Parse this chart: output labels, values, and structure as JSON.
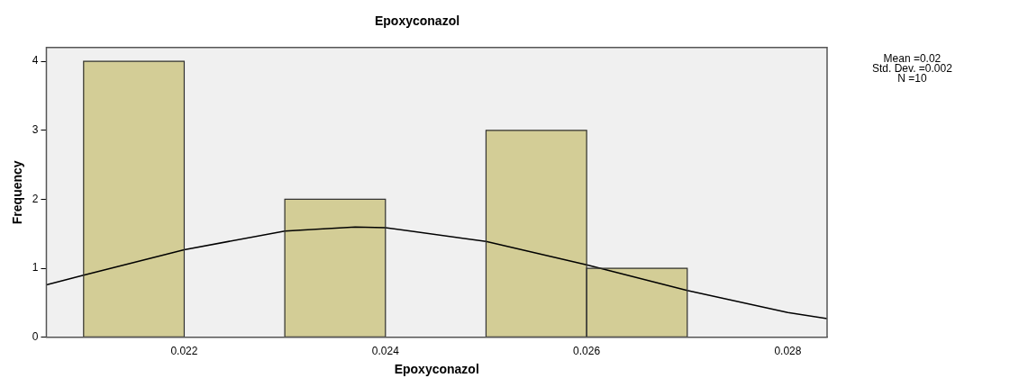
{
  "chart_data": {
    "type": "histogram",
    "title": "Epoxyconazol",
    "xlabel": "Epoxyconazol",
    "ylabel": "Frequency",
    "bins": [
      0.021,
      0.022,
      0.023,
      0.024,
      0.025,
      0.026,
      0.027
    ],
    "values": [
      4,
      0,
      2,
      0,
      3,
      1
    ],
    "color": "#d3cd96",
    "series": [
      {
        "type": "line",
        "color": "#000000",
        "x": [
          0.02063,
          0.021,
          0.022,
          0.023,
          0.0237,
          0.024,
          0.025,
          0.026,
          0.027,
          0.028,
          0.02839
        ],
        "values": [
          0.76,
          0.9,
          1.27,
          1.54,
          1.6,
          1.59,
          1.39,
          1.05,
          0.68,
          0.36,
          0.27
        ]
      }
    ],
    "xlim": [
      0.02063,
      0.02839
    ],
    "xticks": [
      0.022,
      0.024,
      0.026,
      0.028
    ],
    "ylim": [
      0,
      4.2
    ],
    "yticks": [
      0,
      1,
      2,
      3,
      4
    ],
    "grid": false,
    "marker": "none",
    "annotations": [
      "Mean =0.02",
      "Std. Dev. =0.002",
      "N =10"
    ]
  }
}
